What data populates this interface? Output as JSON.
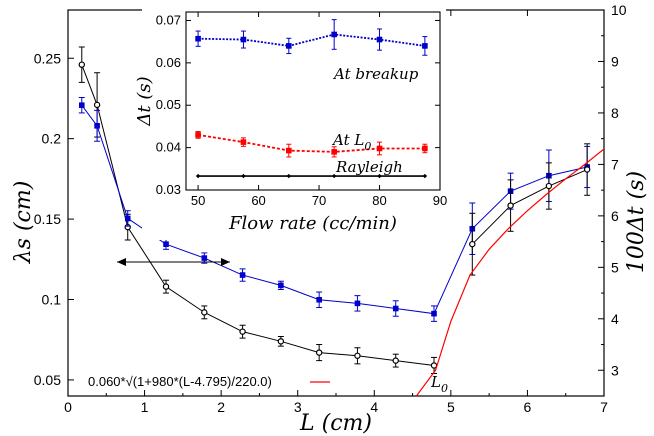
{
  "chart_data": [
    {
      "type": "line",
      "xlabel": "L (cm)",
      "ylabel_left": "λs (cm)",
      "ylabel_right": "100Δt (s)",
      "xlim": [
        0,
        7
      ],
      "ylim_left": [
        0.04,
        0.28
      ],
      "ylim_right": [
        2.5,
        10
      ],
      "xticks": [
        "0",
        "1",
        "2",
        "3",
        "4",
        "5",
        "6",
        "7"
      ],
      "yticks_left": [
        "0.05",
        "0.1",
        "0.15",
        "0.2",
        "0.25"
      ],
      "yticks_right": [
        "3",
        "4",
        "5",
        "6",
        "7",
        "8",
        "9",
        "10"
      ],
      "series": [
        {
          "axis": "left",
          "color": "#000000",
          "marker": "circle",
          "x": [
            0.18,
            0.38,
            0.78,
            1.28,
            1.78,
            2.28,
            2.78,
            3.28,
            3.78,
            4.28,
            4.78
          ],
          "y": [
            0.246,
            0.221,
            0.145,
            0.108,
            0.092,
            0.08,
            0.074,
            0.067,
            0.065,
            0.062,
            0.059
          ],
          "err": [
            0.011,
            0.02,
            0.008,
            0.004,
            0.004,
            0.004,
            0.003,
            0.005,
            0.005,
            0.004,
            0.005
          ]
        },
        {
          "axis": "right",
          "color": "#0000cc",
          "marker": "square",
          "x": [
            0.18,
            0.38,
            0.78,
            1.28,
            1.78,
            2.28,
            2.78,
            3.28,
            3.78,
            4.28,
            4.78,
            5.28,
            5.78,
            6.28,
            6.78
          ],
          "y": [
            8.15,
            7.75,
            5.95,
            5.45,
            5.18,
            4.85,
            4.65,
            4.37,
            4.3,
            4.2,
            4.1,
            5.75,
            6.48,
            6.78,
            6.95
          ],
          "err": [
            0.15,
            0.3,
            0.15,
            0.1,
            0.1,
            0.12,
            0.08,
            0.15,
            0.15,
            0.15,
            0.15,
            0.5,
            0.35,
            0.5,
            0.4
          ]
        },
        {
          "axis": "right",
          "color": "#000000",
          "marker": "circle",
          "x": [
            5.28,
            5.78,
            6.28,
            6.78
          ],
          "y": [
            5.45,
            6.2,
            6.58,
            6.9
          ],
          "err": [
            0.6,
            0.5,
            0.45,
            0.5
          ]
        },
        {
          "axis": "right",
          "color": "#ff0000",
          "marker": "none",
          "formula": "0.060*√(1+980*(L-4.795)/220.0)",
          "x": [
            4.55,
            4.8,
            5.0,
            5.25,
            5.5,
            5.75,
            6.0,
            6.25,
            6.5,
            6.75,
            7.0
          ],
          "y": [
            2.5,
            3.0,
            3.95,
            4.85,
            5.35,
            5.75,
            6.1,
            6.42,
            6.72,
            7.0,
            7.3
          ]
        }
      ],
      "legend": {
        "label": "0.060*√(1+980*(L-4.795)/220.0)",
        "position": "bottom-left"
      },
      "annotations": {
        "l0": "L0",
        "arrow": "double-headed"
      }
    },
    {
      "type": "line",
      "xlabel": "Flow rate (cc/min)",
      "ylabel": "Δt (s)",
      "xlim": [
        48,
        90
      ],
      "ylim": [
        0.03,
        0.072
      ],
      "xticks": [
        "50",
        "60",
        "70",
        "80",
        "90"
      ],
      "yticks": [
        "0.03",
        "0.04",
        "0.05",
        "0.06",
        "0.07"
      ],
      "series": [
        {
          "name": "At breakup",
          "color": "#0000cc",
          "marker": "square",
          "x": [
            50,
            57.5,
            65,
            72.5,
            80,
            87.5
          ],
          "y": [
            0.0657,
            0.0655,
            0.064,
            0.0667,
            0.0655,
            0.064
          ],
          "err": [
            0.0018,
            0.002,
            0.0018,
            0.0035,
            0.0025,
            0.0022
          ]
        },
        {
          "name": "At L0",
          "color": "#ff0000",
          "marker": "square",
          "x": [
            50,
            57.5,
            65,
            72.5,
            80,
            87.5
          ],
          "y": [
            0.043,
            0.0413,
            0.0393,
            0.039,
            0.0398,
            0.0398
          ],
          "err": [
            0.0008,
            0.001,
            0.0015,
            0.0012,
            0.0015,
            0.001
          ]
        },
        {
          "name": "Rayleigh",
          "color": "#000000",
          "marker": "diamond",
          "x": [
            50,
            57.5,
            65,
            72.5,
            80,
            87.5
          ],
          "y": [
            0.0333,
            0.0333,
            0.0333,
            0.0333,
            0.0333,
            0.0333
          ],
          "err": []
        }
      ],
      "labels": {
        "at_breakup": "At breakup",
        "at_l0": "At L",
        "at_l0_sub": "0",
        "rayleigh": "Rayleigh"
      }
    }
  ]
}
